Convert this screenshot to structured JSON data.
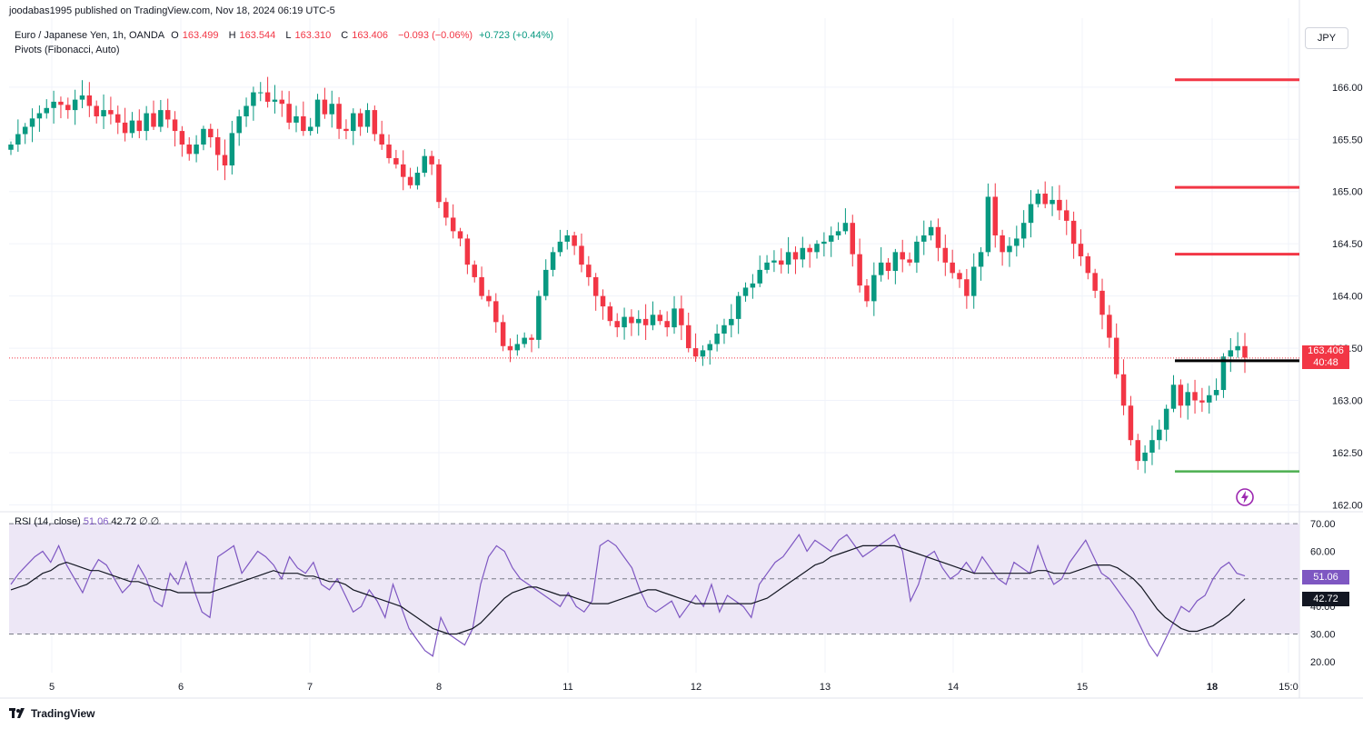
{
  "header": {
    "published": "joodabas1995 published on TradingView.com, Nov 18, 2024 06:19 UTC-5"
  },
  "legend": {
    "symbol": "Euro / Japanese Yen, 1h, OANDA",
    "o_label": "O",
    "o": "163.499",
    "h_label": "H",
    "h": "163.544",
    "l_label": "L",
    "l": "163.310",
    "c_label": "C",
    "c": "163.406",
    "change": "−0.093 (−0.06%)",
    "change2": "+0.723 (+0.44%)",
    "pivots": "Pivots (Fibonacci, Auto)"
  },
  "currency_button": "JPY",
  "price_tag": {
    "price": "163.406",
    "countdown": "40:48"
  },
  "rsi_legend": {
    "label": "RSI (14, close)",
    "rsi": "51.06",
    "ma": "42.72",
    "extra": "∅ ∅"
  },
  "rsi_tags": {
    "rsi": "51.06",
    "ma": "42.72"
  },
  "footer": {
    "brand": "TradingView"
  },
  "colors": {
    "up": "#089981",
    "down": "#f23645",
    "resistance": "#f23645",
    "pivot": "#000000",
    "support": "#4caf50",
    "rsi_line": "#7e57c2",
    "rsi_band": "#ede7f6"
  },
  "chart_data": [
    {
      "type": "candlestick",
      "title": "Euro / Japanese Yen, 1h, OANDA",
      "x_tick_labels": [
        "5",
        "6",
        "7",
        "8",
        "11",
        "12",
        "13",
        "14",
        "15",
        "18",
        "15:0"
      ],
      "y_tick_labels": [
        "166.000",
        "165.500",
        "165.000",
        "164.500",
        "164.000",
        "163.500",
        "163.000",
        "162.500",
        "162.000"
      ],
      "ylim": [
        161.96,
        166.66
      ],
      "close_path": [
        165.45,
        165.55,
        165.62,
        165.7,
        165.75,
        165.8,
        165.86,
        165.83,
        165.78,
        165.88,
        165.92,
        165.82,
        165.72,
        165.78,
        165.74,
        165.66,
        165.56,
        165.68,
        165.58,
        165.75,
        165.62,
        165.78,
        165.69,
        165.58,
        165.45,
        165.36,
        165.45,
        165.6,
        165.52,
        165.35,
        165.25,
        165.56,
        165.72,
        165.82,
        165.95,
        165.95,
        165.86,
        165.88,
        165.84,
        165.66,
        165.72,
        165.58,
        165.62,
        165.88,
        165.74,
        165.84,
        165.6,
        165.58,
        165.75,
        165.62,
        165.78,
        165.55,
        165.45,
        165.32,
        165.26,
        165.14,
        165.06,
        165.18,
        165.34,
        165.26,
        164.9,
        164.75,
        164.62,
        164.55,
        164.3,
        164.18,
        164.0,
        163.95,
        163.75,
        163.52,
        163.48,
        163.54,
        163.6,
        163.58,
        164.0,
        164.25,
        164.42,
        164.52,
        164.58,
        164.48,
        164.3,
        164.18,
        164.0,
        163.9,
        163.76,
        163.7,
        163.8,
        163.74,
        163.78,
        163.72,
        163.82,
        163.76,
        163.7,
        163.88,
        163.72,
        163.5,
        163.42,
        163.48,
        163.54,
        163.64,
        163.72,
        163.78,
        164.0,
        164.08,
        164.12,
        164.25,
        164.32,
        164.34,
        164.3,
        164.42,
        164.35,
        164.46,
        164.42,
        164.5,
        164.52,
        164.58,
        164.62,
        164.7,
        164.4,
        164.1,
        163.95,
        164.2,
        164.32,
        164.24,
        164.42,
        164.35,
        164.32,
        164.52,
        164.58,
        164.66,
        164.46,
        164.32,
        164.22,
        164.16,
        164.0,
        164.28,
        164.42,
        164.95,
        164.58,
        164.42,
        164.48,
        164.55,
        164.7,
        164.88,
        164.98,
        164.88,
        164.92,
        164.82,
        164.72,
        164.5,
        164.38,
        164.22,
        164.05,
        163.82,
        163.6,
        163.25,
        162.95,
        162.62,
        162.42,
        162.5,
        162.62,
        162.72,
        162.92,
        163.15,
        162.95,
        163.08,
        163.0,
        162.98,
        163.05,
        163.1,
        163.42,
        163.48,
        163.52,
        163.41
      ],
      "pivot_levels": [
        {
          "role": "resistance",
          "value": 166.07
        },
        {
          "role": "resistance",
          "value": 165.04
        },
        {
          "role": "resistance",
          "value": 164.4
        },
        {
          "role": "pivot",
          "value": 163.38
        },
        {
          "role": "support",
          "value": 162.32
        }
      ],
      "last_price": 163.406
    },
    {
      "type": "line",
      "title": "RSI (14, close)",
      "y_tick_labels": [
        "70.00",
        "60.00",
        "50.00",
        "40.00",
        "30.00",
        "20.00"
      ],
      "ylim": [
        16,
        73
      ],
      "bands": [
        30,
        50,
        70
      ],
      "series": [
        {
          "name": "RSI",
          "values": [
            48,
            52,
            55,
            58,
            60,
            56,
            62,
            55,
            50,
            45,
            52,
            57,
            55,
            50,
            45,
            48,
            55,
            50,
            42,
            40,
            52,
            48,
            56,
            46,
            38,
            36,
            58,
            60,
            62,
            52,
            56,
            60,
            58,
            55,
            50,
            58,
            54,
            52,
            56,
            48,
            46,
            50,
            44,
            38,
            40,
            46,
            42,
            36,
            48,
            40,
            32,
            28,
            24,
            22,
            36,
            30,
            28,
            26,
            32,
            48,
            58,
            62,
            60,
            54,
            50,
            48,
            46,
            44,
            42,
            40,
            45,
            40,
            38,
            42,
            62,
            64,
            62,
            58,
            54,
            46,
            40,
            38,
            40,
            42,
            36,
            40,
            44,
            40,
            48,
            38,
            44,
            42,
            40,
            36,
            48,
            52,
            56,
            58,
            62,
            66,
            60,
            64,
            62,
            60,
            64,
            66,
            62,
            58,
            60,
            62,
            64,
            66,
            60,
            42,
            48,
            58,
            60,
            54,
            50,
            52,
            56,
            52,
            58,
            54,
            50,
            48,
            56,
            54,
            52,
            62,
            54,
            48,
            50,
            56,
            60,
            64,
            58,
            52,
            50,
            46,
            42,
            38,
            32,
            26,
            22,
            28,
            34,
            40,
            38,
            42,
            44,
            50,
            54,
            56,
            52,
            51.06
          ]
        },
        {
          "name": "RSI-based MA",
          "values": [
            46,
            47,
            48,
            50,
            52,
            53,
            55,
            56,
            55,
            54,
            53,
            53,
            52,
            51,
            50,
            49,
            49,
            48,
            47,
            46,
            46,
            45,
            45,
            45,
            45,
            45,
            46,
            47,
            48,
            49,
            50,
            51,
            52,
            53,
            52,
            52,
            52,
            51,
            51,
            50,
            49,
            49,
            48,
            46,
            45,
            44,
            43,
            42,
            41,
            40,
            38,
            36,
            34,
            32,
            31,
            30,
            30,
            31,
            32,
            34,
            37,
            40,
            43,
            45,
            46,
            47,
            47,
            46,
            45,
            44,
            44,
            43,
            42,
            41,
            41,
            41,
            42,
            43,
            44,
            45,
            46,
            46,
            45,
            44,
            43,
            42,
            41,
            41,
            41,
            41,
            41,
            41,
            41,
            41,
            42,
            43,
            45,
            47,
            49,
            51,
            53,
            55,
            56,
            58,
            59,
            60,
            61,
            62,
            62,
            62,
            62,
            62,
            61,
            60,
            59,
            58,
            57,
            56,
            55,
            54,
            53,
            52,
            52,
            52,
            52,
            52,
            52,
            52,
            52,
            53,
            53,
            52,
            52,
            52,
            53,
            54,
            55,
            55,
            55,
            54,
            52,
            50,
            47,
            43,
            39,
            36,
            34,
            32,
            31,
            31,
            32,
            33,
            35,
            37,
            40,
            42.72
          ]
        }
      ]
    }
  ]
}
